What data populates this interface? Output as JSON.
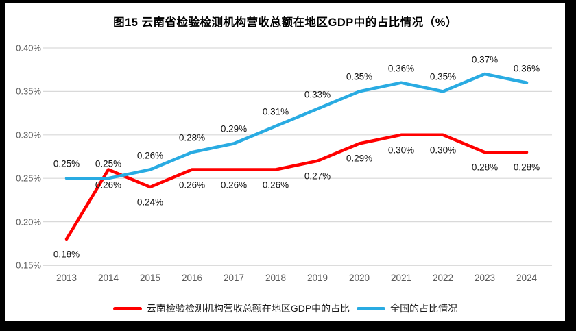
{
  "chart_data": {
    "type": "line",
    "title": "图15 云南省检验检测机构营收总额在地区GDP中的占比情况（%）",
    "categories": [
      "2013",
      "2014",
      "2015",
      "2016",
      "2017",
      "2018",
      "2019",
      "2020",
      "2021",
      "2022",
      "2023",
      "2024"
    ],
    "series": [
      {
        "name": "云南检验检测机构营收总额在地区GDP中的占比",
        "color": "#FF0000",
        "values": [
          0.18,
          0.26,
          0.24,
          0.26,
          0.26,
          0.26,
          0.27,
          0.29,
          0.3,
          0.3,
          0.28,
          0.28
        ],
        "point_labels": [
          "0.18%",
          "0.26%",
          "0.24%",
          "0.26%",
          "0.26%",
          "0.26%",
          "0.27%",
          "0.29%",
          "0.30%",
          "0.30%",
          "0.28%",
          "0.28%"
        ],
        "label_position": "below"
      },
      {
        "name": "全国的占比情况",
        "color": "#29ABE2",
        "values": [
          0.25,
          0.25,
          0.26,
          0.28,
          0.29,
          0.31,
          0.33,
          0.35,
          0.36,
          0.35,
          0.37,
          0.36
        ],
        "point_labels": [
          "0.25%",
          "0.25%",
          "0.26%",
          "0.28%",
          "0.29%",
          "0.31%",
          "0.33%",
          "0.35%",
          "0.36%",
          "0.35%",
          "0.37%",
          "0.36%"
        ],
        "label_position": "above"
      }
    ],
    "y_axis": {
      "min": 0.15,
      "max": 0.4,
      "step": 0.05,
      "tick_labels": [
        "0.40%",
        "0.35%",
        "0.30%",
        "0.25%",
        "0.20%",
        "0.15%"
      ]
    },
    "grid": true,
    "legend_position": "bottom",
    "colors": {
      "grid_line": "#D9D9D9",
      "axis_line": "#C8C8C8",
      "axis_text": "#595959",
      "data_label_text": "#111111",
      "title_text": "#000000"
    }
  }
}
